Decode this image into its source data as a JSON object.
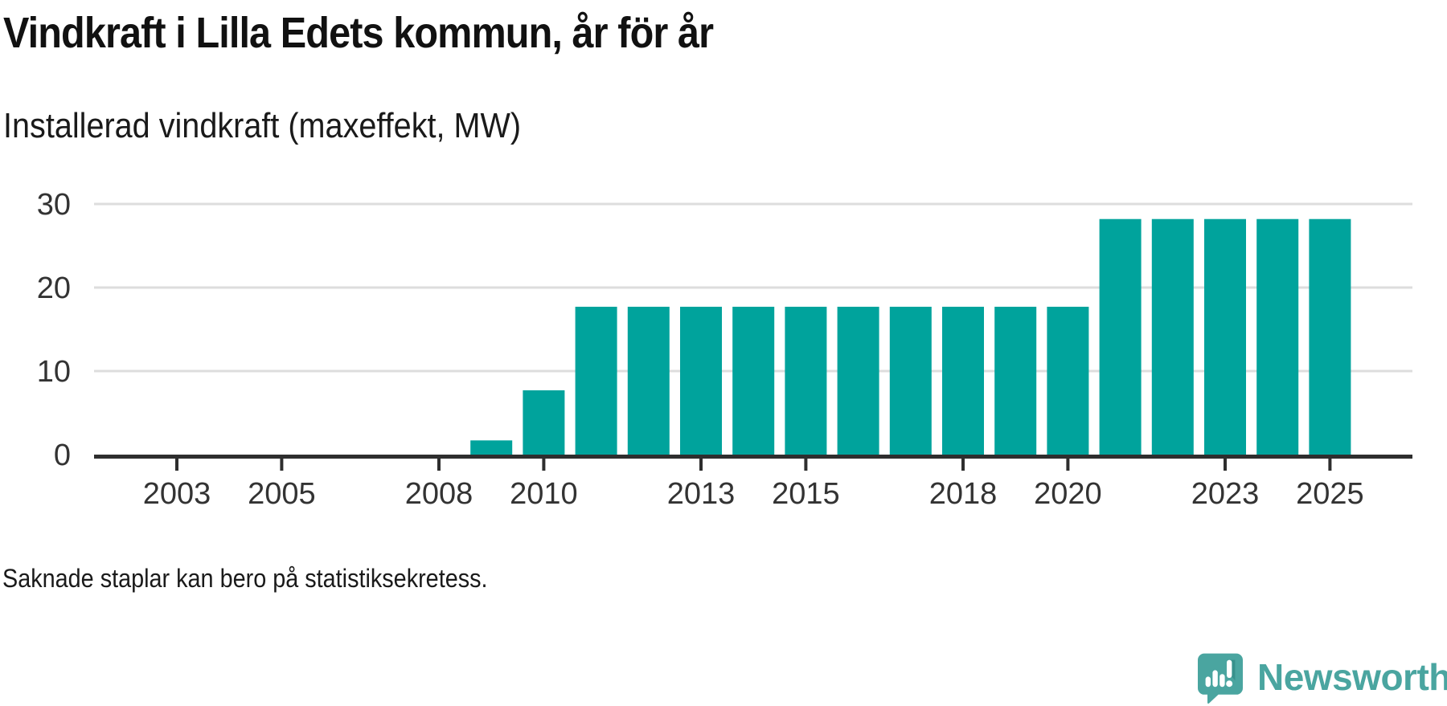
{
  "header": {
    "title": "Vindkraft i Lilla Edets kommun, år för år",
    "subtitle": "Installerad vindkraft (maxeffekt, MW)"
  },
  "footer": {
    "note": "Saknade staplar kan bero på statistiksekretess.",
    "brand_name": "Newsworthy"
  },
  "colors": {
    "bar": "#00a39c",
    "axis": "#2e2e2e",
    "grid": "#dddddd",
    "tick_label": "#333333",
    "brand_teal": "#4aa5a0",
    "brand_teal_dark": "#37918c"
  },
  "chart_data": {
    "type": "bar",
    "title": "Vindkraft i Lilla Edets kommun, år för år",
    "subtitle": "Installerad vindkraft (maxeffekt, MW)",
    "xlabel": "",
    "ylabel": "Installerad vindkraft (maxeffekt, MW)",
    "x": [
      2002,
      2003,
      2004,
      2005,
      2006,
      2007,
      2008,
      2009,
      2010,
      2011,
      2012,
      2013,
      2014,
      2015,
      2016,
      2017,
      2018,
      2019,
      2020,
      2021,
      2022,
      2023,
      2024,
      2025
    ],
    "values": [
      null,
      null,
      null,
      null,
      null,
      null,
      null,
      1.7,
      7.7,
      17.7,
      17.7,
      17.7,
      17.7,
      17.7,
      17.7,
      17.7,
      17.7,
      17.7,
      17.7,
      28.2,
      28.2,
      28.2,
      28.2,
      28.2
    ],
    "x_tick_labels": [
      "2003",
      "2005",
      "2008",
      "2010",
      "2013",
      "2015",
      "2018",
      "2020",
      "2023",
      "2025"
    ],
    "y_ticks": [
      0,
      10,
      20,
      30
    ],
    "ylim": [
      0,
      30
    ],
    "grid": "horizontal-gridlines-behind-bars",
    "legend": "none",
    "missing_data_note": "Saknade staplar kan bero på statistiksekretess."
  }
}
